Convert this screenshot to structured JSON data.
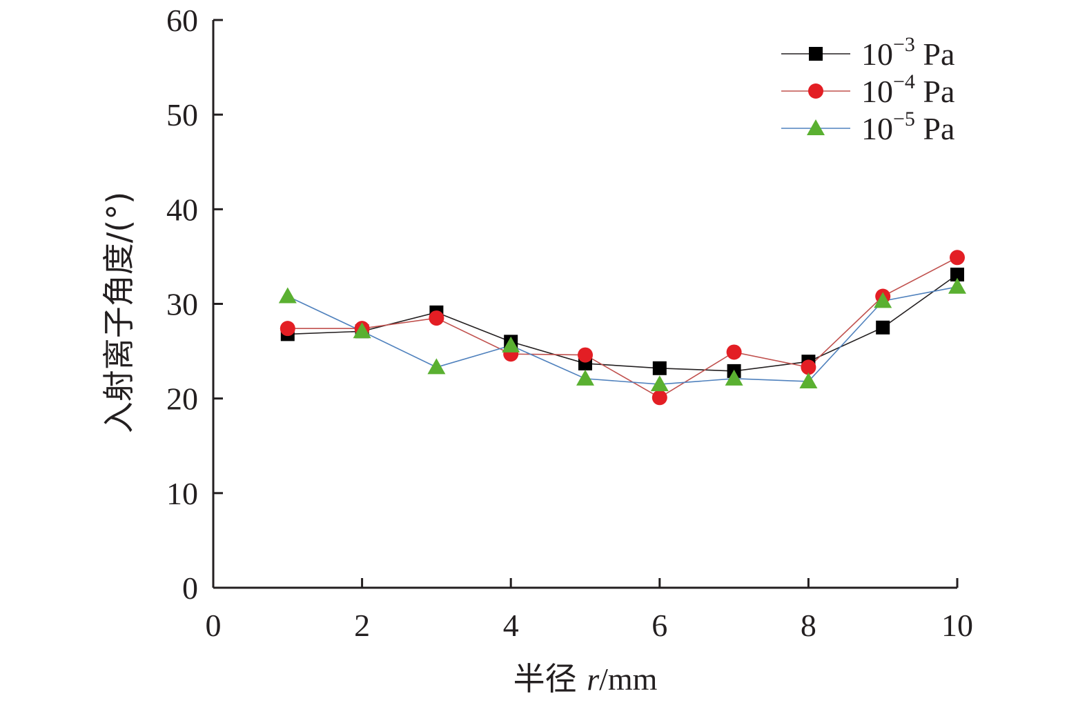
{
  "chart_data": {
    "type": "line",
    "xlabel_prefix": "半径 ",
    "xlabel_var": "r",
    "xlabel_unit": "/mm",
    "ylabel": "入射离子角度/(°)",
    "xlim": [
      0,
      10
    ],
    "ylim": [
      0,
      60
    ],
    "xticks": [
      "0",
      "2",
      "4",
      "6",
      "8",
      "10"
    ],
    "yticks": [
      "0",
      "10",
      "20",
      "30",
      "40",
      "50",
      "60"
    ],
    "grid": false,
    "legend_position": "top-right",
    "x": [
      1,
      2,
      3,
      4,
      5,
      6,
      7,
      8,
      9,
      10
    ],
    "series": [
      {
        "name": "10−3 Pa",
        "base": "10",
        "exp": "−3",
        "unit": " Pa",
        "marker": "square",
        "color": "#000000",
        "line_color": "#231f20",
        "values": [
          26.8,
          27.1,
          29.1,
          26.0,
          23.7,
          23.2,
          22.9,
          23.9,
          27.5,
          33.1
        ]
      },
      {
        "name": "10−4 Pa",
        "base": "10",
        "exp": "−4",
        "unit": " Pa",
        "marker": "circle",
        "color": "#e31e24",
        "line_color": "#c0504d",
        "values": [
          27.4,
          27.4,
          28.5,
          24.7,
          24.6,
          20.1,
          24.9,
          23.3,
          30.8,
          34.9
        ]
      },
      {
        "name": "10−5 Pa",
        "base": "10",
        "exp": "−5",
        "unit": " Pa",
        "marker": "triangle",
        "color": "#5ab031",
        "line_color": "#4f81bd",
        "values": [
          30.8,
          27.1,
          23.3,
          25.6,
          22.1,
          21.5,
          22.1,
          21.8,
          30.3,
          31.8
        ]
      }
    ]
  }
}
